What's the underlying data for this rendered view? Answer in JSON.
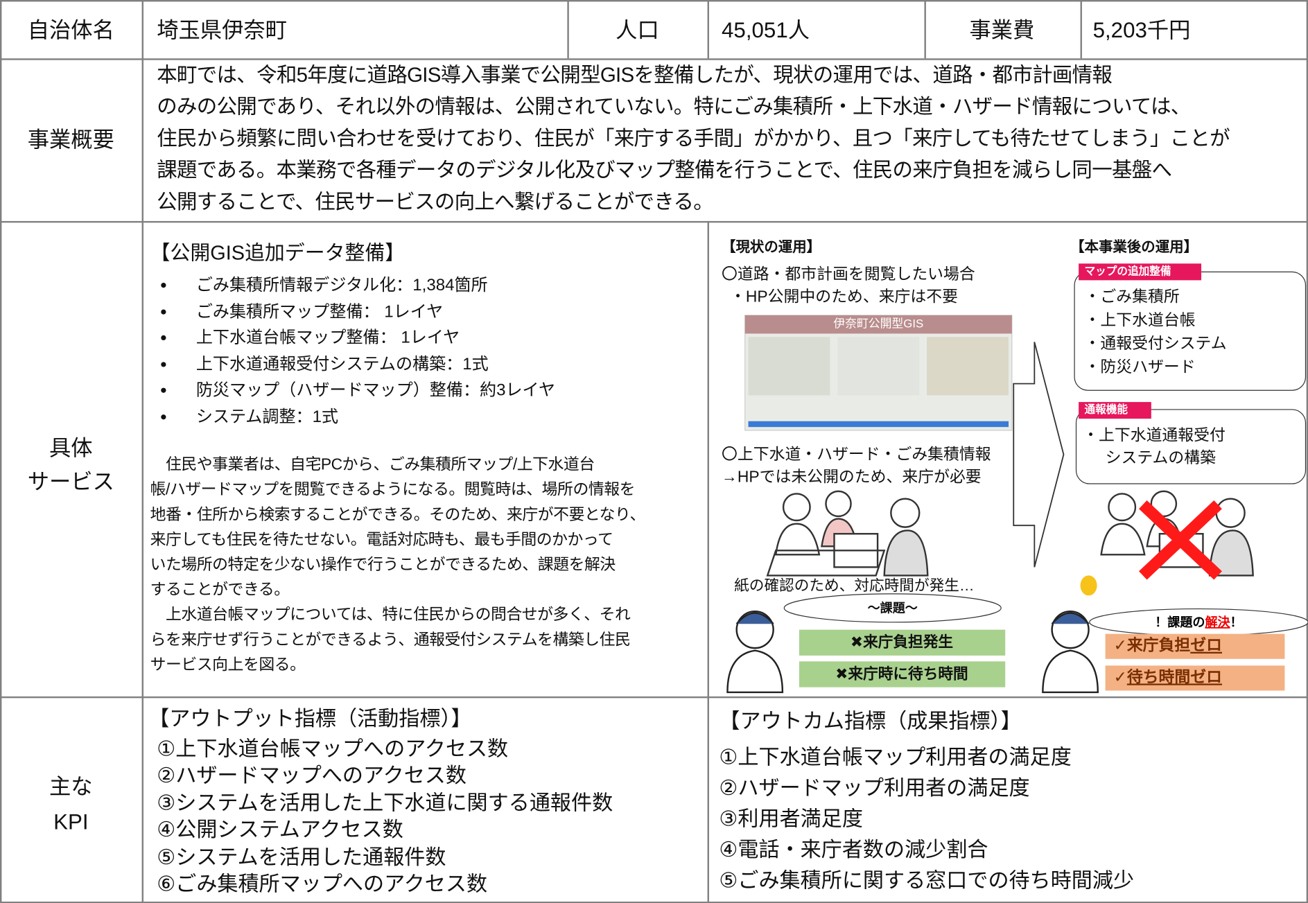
{
  "header": {
    "municipality_label": "自治体名",
    "municipality": "埼玉県伊奈町",
    "population_label": "人口",
    "population": "45,051人",
    "cost_label": "事業費",
    "cost": "5,203千円"
  },
  "overview": {
    "label": "事業概要",
    "lines": [
      "本町では、令和5年度に道路GIS導入事業で公開型GISを整備したが、現状の運用では、道路・都市計画情報",
      "のみの公開であり、それ以外の情報は、公開されていない。特にごみ集積所・上下水道・ハザード情報については、",
      "住民から頻繁に問い合わせを受けており、住民が「来庁する手間」がかかり、且つ「来庁しても待たせてしまう」ことが",
      "課題である。本業務で各種データのデジタル化及びマップ整備を行うことで、住民の来庁負担を減らし同一基盤へ",
      "公開することで、住民サービスの向上へ繋げることができる。"
    ]
  },
  "service": {
    "label": [
      "具体",
      "サービス"
    ],
    "heading": "【公開GIS追加データ整備】",
    "items": [
      "ごみ集積所情報デジタル化：1,384箇所",
      "ごみ集積所マップ整備： 1レイヤ",
      "上下水道台帳マップ整備： 1レイヤ",
      "上下水道通報受付システムの構築：1式",
      "防災マップ（ハザードマップ）整備：約3レイヤ",
      "システム調整：1式"
    ],
    "paragraph_lines": [
      "　住民や事業者は、自宅PCから、ごみ集積所マップ/上下水道台",
      "帳/ハザードマップを閲覧できるようになる。閲覧時は、場所の情報を",
      "地番・住所から検索することができる。そのため、来庁が不要となり、",
      "来庁しても住民を待たせない。電話対応時も、最も手間のかかって",
      "いた場所の特定を少ない操作で行うことができるため、課題を解決",
      "することができる。",
      "　上水道台帳マップについては、特に住民からの問合せが多く、それ",
      "らを来庁せず行うことができるよう、通報受付システムを構築し住民",
      "サービス向上を図る。"
    ],
    "current": {
      "title": "【現状の運用】",
      "case1": [
        "〇道路・都市計画を閲覧したい場合",
        "・HP公開中のため、来庁は不要"
      ],
      "screenshot_title": "伊奈町公開型GIS",
      "case2": [
        "〇上下水道・ハザード・ごみ集積情報",
        "→HPでは未公開のため、来庁が必要"
      ],
      "caption": "紙の確認のため、対応時間が発生…",
      "issue": "～課題～",
      "problems": [
        "✖来庁負担発生",
        "✖来庁時に待ち時間"
      ]
    },
    "after": {
      "title": "【本事業後の運用】",
      "box1_tag": "マップの追加整備",
      "box1_items": [
        "・ごみ集積所",
        "・上下水道台帳",
        "・通報受付システム",
        "・防災ハザード"
      ],
      "box2_tag": "通報機能",
      "box2_items": [
        "・上下水道通報受付",
        "システムの構築"
      ],
      "resolved": [
        "！課題の",
        "解決",
        "！"
      ],
      "results": [
        [
          "✓来庁負担",
          "ゼロ"
        ],
        [
          "✓",
          "待ち時間ゼロ"
        ]
      ]
    }
  },
  "kpi": {
    "label": [
      "主な",
      "KPI"
    ],
    "output": {
      "title": "【アウトプット指標（活動指標）】",
      "items": [
        "①上下水道台帳マップへのアクセス数",
        "②ハザードマップへのアクセス数",
        "③システムを活用した上下水道に関する通報件数",
        "④公開システムアクセス数",
        "⑤システムを活用した通報件数",
        "⑥ごみ集積所マップへのアクセス数"
      ]
    },
    "outcome": {
      "title": "【アウトカム指標（成果指標）】",
      "items": [
        "①上下水道台帳マップ利用者の満足度",
        "②ハザードマップ利用者の満足度",
        "③利用者満足度",
        "④電話・来庁者数の減少割合",
        "⑤ごみ集積所に関する窓口での待ち時間減少"
      ]
    }
  }
}
